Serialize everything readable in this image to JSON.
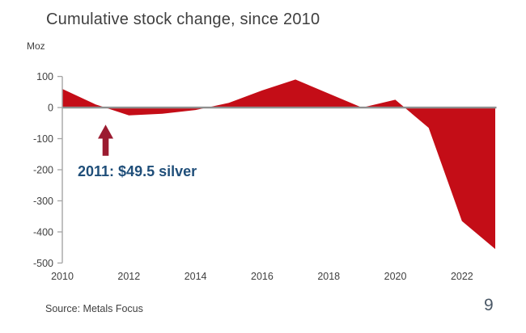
{
  "slide": {
    "title": "Cumulative stock change, since 2010",
    "unit_label": "Moz",
    "source": "Source: Metals Focus",
    "page_number": "9"
  },
  "annotation": {
    "text": "2011: $49.5 silver",
    "text_color": "#1f4e79",
    "arrow_color": "#9b1b30",
    "arrow_year": 2011.3,
    "arrow_tip_value": -55,
    "arrow_head_value": -100,
    "arrow_tail_value": -155
  },
  "chart_data": {
    "type": "area",
    "title": "Cumulative stock change, since 2010",
    "xlabel": "",
    "ylabel": "Moz",
    "x": [
      2010,
      2011,
      2012,
      2013,
      2014,
      2015,
      2016,
      2017,
      2018,
      2019,
      2020,
      2021,
      2022,
      2023
    ],
    "values": [
      60,
      10,
      -25,
      -20,
      -8,
      15,
      55,
      90,
      45,
      0,
      25,
      -65,
      -365,
      -455
    ],
    "baseline": 0,
    "xlim": [
      2010,
      2023
    ],
    "ylim": [
      -500,
      100
    ],
    "x_ticks": [
      2010,
      2012,
      2014,
      2016,
      2018,
      2020,
      2022
    ],
    "y_ticks": [
      100,
      0,
      -100,
      -200,
      -300,
      -400,
      -500
    ],
    "grid": false,
    "legend": null,
    "area_color": "#c40d17",
    "zero_line_color": "#8f8f8f",
    "axis_color": "#a6a6a6",
    "tick_label_color": "#404040"
  }
}
